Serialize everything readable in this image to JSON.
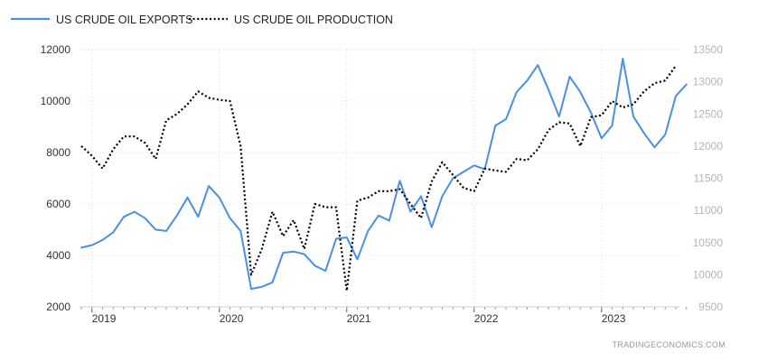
{
  "chart_data": {
    "type": "line",
    "x_start": "2018-12",
    "x_interval": "month",
    "x_tick_labels": [
      "2019",
      "2020",
      "2021",
      "2022",
      "2023"
    ],
    "left_axis": {
      "ylim": [
        2000,
        12000
      ],
      "ticks": [
        "2000",
        "4000",
        "6000",
        "8000",
        "10000",
        "12000"
      ]
    },
    "right_axis": {
      "ylim": [
        9500,
        13500
      ],
      "ticks": [
        "9500",
        "10000",
        "10500",
        "11000",
        "11500",
        "12000",
        "12500",
        "13000",
        "13500"
      ]
    },
    "grid": true,
    "legend_position": "top-left",
    "series": [
      {
        "name": "US CRUDE OIL EXPORTS",
        "axis": "left",
        "color": "#4a90e2",
        "style": "solid",
        "values": [
          4300,
          4400,
          4600,
          4900,
          5500,
          5700,
          5450,
          5000,
          4950,
          5550,
          6250,
          5500,
          6700,
          6250,
          5450,
          4950,
          2700,
          2780,
          2950,
          4100,
          4150,
          4050,
          3600,
          3400,
          4650,
          4700,
          3850,
          4950,
          5550,
          5350,
          6900,
          5700,
          6300,
          5100,
          6300,
          7000,
          7250,
          7500,
          7350,
          9050,
          9300,
          10350,
          10800,
          11400,
          10450,
          9400,
          10950,
          10350,
          9550,
          8550,
          9050,
          11650,
          9400,
          8750,
          8200,
          8700,
          10200,
          10650
        ]
      },
      {
        "name": "US CRUDE OIL PRODUCTION",
        "axis": "right",
        "color": "#000000",
        "style": "dotted",
        "values": [
          12000,
          11850,
          11650,
          11950,
          12150,
          12150,
          12050,
          11800,
          12400,
          12500,
          12650,
          12850,
          12750,
          12720,
          12700,
          12000,
          10000,
          10400,
          10980,
          10600,
          10850,
          10400,
          11100,
          11050,
          11050,
          9750,
          11150,
          11200,
          11300,
          11300,
          11330,
          11100,
          10880,
          11450,
          11750,
          11550,
          11350,
          11300,
          11650,
          11620,
          11600,
          11800,
          11780,
          11950,
          12250,
          12370,
          12350,
          12000,
          12450,
          12480,
          12700,
          12600,
          12650,
          12850,
          12980,
          13020,
          13250
        ]
      }
    ]
  },
  "credit": "TRADINGECONOMICS.COM",
  "colors": {
    "grid": "#d9d9d9",
    "axis_left_text": "#333333",
    "axis_right_text": "#b5b5b5"
  }
}
